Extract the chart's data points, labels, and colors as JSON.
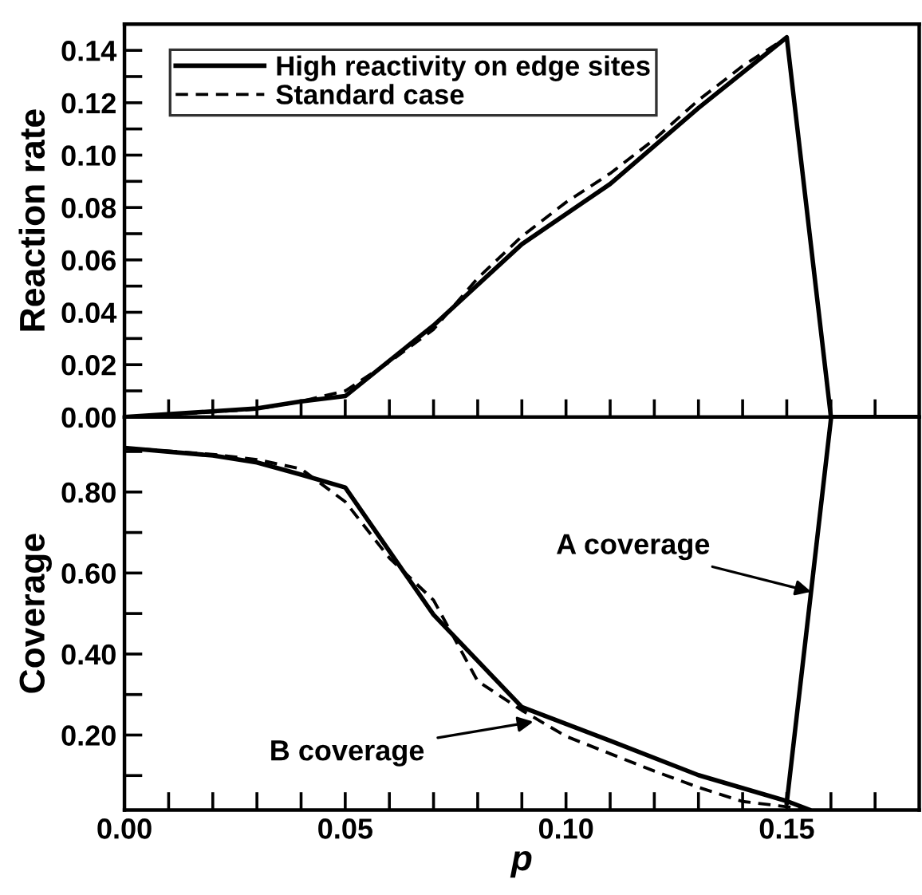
{
  "chart_data": [
    {
      "type": "line",
      "ylabel": "Reaction rate",
      "xlim": [
        0,
        0.18
      ],
      "ylim": [
        0,
        0.15
      ],
      "xticks": [
        {
          "value": 0,
          "label": null
        },
        {
          "value": 0.01,
          "label": null
        },
        {
          "value": 0.02,
          "label": null
        },
        {
          "value": 0.03,
          "label": null
        },
        {
          "value": 0.04,
          "label": null
        },
        {
          "value": 0.05,
          "label": null
        },
        {
          "value": 0.06,
          "label": null
        },
        {
          "value": 0.07,
          "label": null
        },
        {
          "value": 0.08,
          "label": null
        },
        {
          "value": 0.09,
          "label": null
        },
        {
          "value": 0.1,
          "label": null
        },
        {
          "value": 0.11,
          "label": null
        },
        {
          "value": 0.12,
          "label": null
        },
        {
          "value": 0.13,
          "label": null
        },
        {
          "value": 0.14,
          "label": null
        },
        {
          "value": 0.15,
          "label": null
        },
        {
          "value": 0.16,
          "label": null
        },
        {
          "value": 0.17,
          "label": null
        }
      ],
      "yticks": [
        {
          "value": 0,
          "label": "0.00"
        },
        {
          "value": 0.01,
          "label": null
        },
        {
          "value": 0.02,
          "label": "0.02"
        },
        {
          "value": 0.03,
          "label": null
        },
        {
          "value": 0.04,
          "label": "0.04"
        },
        {
          "value": 0.05,
          "label": null
        },
        {
          "value": 0.06,
          "label": "0.06"
        },
        {
          "value": 0.07,
          "label": null
        },
        {
          "value": 0.08,
          "label": "0.08"
        },
        {
          "value": 0.09,
          "label": null
        },
        {
          "value": 0.1,
          "label": "0.10"
        },
        {
          "value": 0.11,
          "label": null
        },
        {
          "value": 0.12,
          "label": "0.12"
        },
        {
          "value": 0.13,
          "label": null
        },
        {
          "value": 0.14,
          "label": "0.14"
        }
      ],
      "tick_labels": "y",
      "legend": "top left",
      "grid": false,
      "marker": "none",
      "series": [
        {
          "name": "High reactivity on edge sites",
          "color": "#000000",
          "line_style": "solid",
          "x": [
            0,
            0.03,
            0.04,
            0.05,
            0.07,
            0.09,
            0.11,
            0.13,
            0.15,
            0.16,
            0.18
          ],
          "values": [
            0,
            0.0033,
            0.006,
            0.008,
            0.035,
            0.066,
            0.089,
            0.118,
            0.145,
            0,
            0
          ]
        },
        {
          "name": "Standard case",
          "color": "#000000",
          "line_style": "dashed",
          "x": [
            0,
            0.03,
            0.04,
            0.05,
            0.06,
            0.07,
            0.08,
            0.09,
            0.1,
            0.11,
            0.12,
            0.13,
            0.14,
            0.15,
            0.16,
            0.18
          ],
          "values": [
            0,
            0.003,
            0.006,
            0.01,
            0.021,
            0.0335,
            0.053,
            0.069,
            0.082,
            0.093,
            0.106,
            0.121,
            0.134,
            0.145,
            0,
            0
          ]
        }
      ]
    },
    {
      "type": "line",
      "ylabel": "Coverage",
      "xlabel": "p",
      "xlim": [
        0,
        0.18
      ],
      "ylim": [
        0.015,
        0.985
      ],
      "xticks": [
        {
          "value": 0,
          "label": "0.00"
        },
        {
          "value": 0.01,
          "label": null
        },
        {
          "value": 0.02,
          "label": null
        },
        {
          "value": 0.03,
          "label": null
        },
        {
          "value": 0.04,
          "label": null
        },
        {
          "value": 0.05,
          "label": "0.05"
        },
        {
          "value": 0.06,
          "label": null
        },
        {
          "value": 0.07,
          "label": null
        },
        {
          "value": 0.08,
          "label": null
        },
        {
          "value": 0.09,
          "label": null
        },
        {
          "value": 0.1,
          "label": "0.10"
        },
        {
          "value": 0.11,
          "label": null
        },
        {
          "value": 0.12,
          "label": null
        },
        {
          "value": 0.13,
          "label": null
        },
        {
          "value": 0.14,
          "label": null
        },
        {
          "value": 0.15,
          "label": "0.15"
        },
        {
          "value": 0.16,
          "label": null
        },
        {
          "value": 0.17,
          "label": null
        }
      ],
      "yticks": [
        {
          "value": 0.1,
          "label": null
        },
        {
          "value": 0.2,
          "label": "0.20"
        },
        {
          "value": 0.3,
          "label": null
        },
        {
          "value": 0.4,
          "label": "0.40"
        },
        {
          "value": 0.5,
          "label": null
        },
        {
          "value": 0.6,
          "label": "0.60"
        },
        {
          "value": 0.7,
          "label": null
        },
        {
          "value": 0.8,
          "label": "0.80"
        },
        {
          "value": 0.9,
          "label": null
        }
      ],
      "grid": false,
      "marker": "none",
      "annotations": [
        {
          "text": "A coverage",
          "x": 0.1555,
          "y": 0.554
        },
        {
          "text": "B coverage",
          "x": 0.0926,
          "y": 0.233
        }
      ],
      "series": [
        {
          "color": "#000000",
          "line_style": "solid",
          "x": [
            0,
            0.02,
            0.03,
            0.04,
            0.05,
            0.07,
            0.09,
            0.11,
            0.13,
            0.15,
            0.155
          ],
          "values": [
            0.909,
            0.89,
            0.873,
            0.843,
            0.811,
            0.497,
            0.269,
            0.186,
            0.101,
            0.037,
            0.016
          ]
        },
        {
          "color": "#000000",
          "line_style": "dashed",
          "x": [
            0,
            0.02,
            0.03,
            0.04,
            0.05,
            0.06,
            0.07,
            0.08,
            0.09,
            0.1,
            0.11,
            0.12,
            0.13,
            0.14,
            0.15,
            0.155
          ],
          "values": [
            0.909,
            0.893,
            0.88,
            0.857,
            0.776,
            0.637,
            0.533,
            0.333,
            0.261,
            0.197,
            0.154,
            0.111,
            0.071,
            0.036,
            0.023,
            0.016
          ]
        },
        {
          "color": "#000000",
          "line_style": "solid",
          "x": [
            0.15,
            0.16
          ],
          "values": [
            0.033,
            0.98
          ]
        }
      ]
    }
  ]
}
